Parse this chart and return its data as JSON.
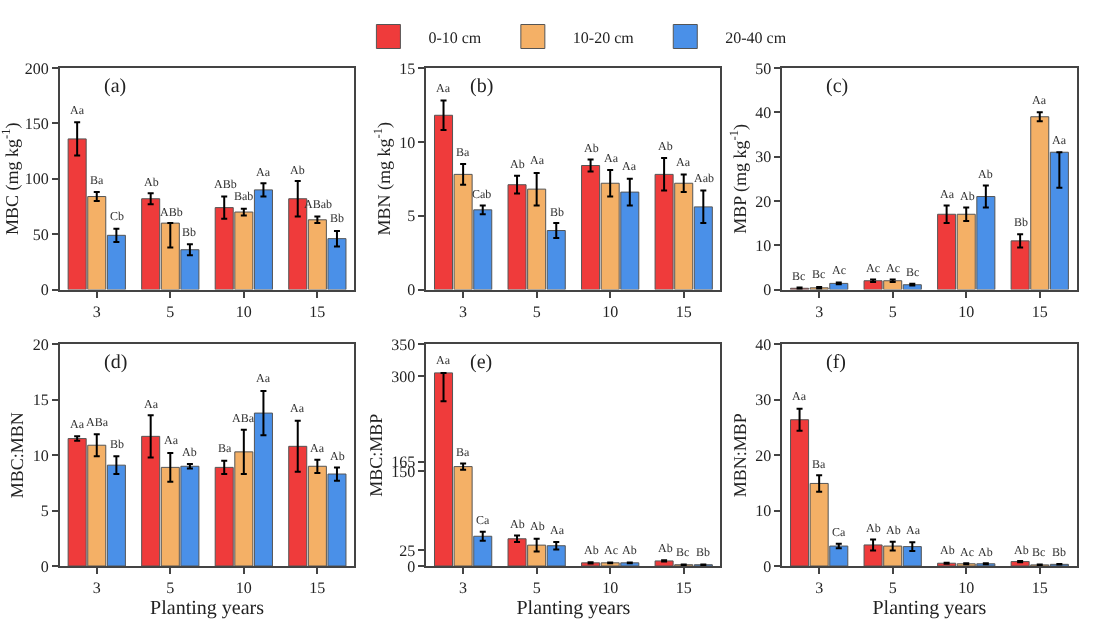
{
  "chart_data": [
    {
      "type": "bar",
      "title": "(a)",
      "ylabel": "MBC (mg kg$^{-1}$)",
      "categories": [
        "3",
        "5",
        "10",
        "15"
      ],
      "ylim": [
        0,
        200
      ],
      "yticks": [
        0,
        50,
        100,
        150,
        200
      ],
      "legend": false,
      "series": [
        {
          "color": "#ef3b3b",
          "values": [
            136,
            82,
            74,
            82
          ],
          "errors": [
            15,
            5,
            10,
            16
          ],
          "value_labels": [
            "Aa",
            "Ab",
            "ABb",
            "Ab"
          ]
        },
        {
          "color": "#f4b066",
          "values": [
            84,
            60,
            70,
            63
          ],
          "errors": [
            4,
            [
              38,
              60
            ],
            3,
            3
          ],
          "value_labels": [
            "Ba",
            "ABb",
            "Bab",
            "ABab"
          ]
        },
        {
          "color": "#4a90e8",
          "values": [
            49,
            36,
            90,
            46
          ],
          "errors": [
            6,
            5,
            6,
            7
          ],
          "value_labels": [
            "Cb",
            "Bb",
            "Aa",
            "Bb"
          ]
        }
      ]
    },
    {
      "type": "bar",
      "title": "(b)",
      "ylabel": "MBN (mg kg$^{-1}$)",
      "categories": [
        "3",
        "5",
        "10",
        "15"
      ],
      "ylim": [
        0,
        15
      ],
      "yticks": [
        0,
        5,
        10,
        15
      ],
      "legend": "top",
      "series": [
        {
          "name": "0-10 cm",
          "color": "#ef3b3b",
          "values": [
            11.8,
            7.1,
            8.4,
            7.8
          ],
          "errors": [
            1,
            0.6,
            0.4,
            1.1
          ],
          "value_labels": [
            "Aa",
            "Ab",
            "Ab",
            "Ab"
          ]
        },
        {
          "name": "10-20 cm",
          "color": "#f4b066",
          "values": [
            7.8,
            6.8,
            7.2,
            7.2
          ],
          "errors": [
            0.7,
            1.1,
            0.9,
            0.6
          ],
          "value_labels": [
            "Ba",
            "Aa",
            "Aa",
            "Aa"
          ]
        },
        {
          "name": "20-40 cm",
          "color": "#4a90e8",
          "values": [
            5.4,
            4.0,
            6.6,
            5.6
          ],
          "errors": [
            0.3,
            0.5,
            0.9,
            1.1
          ],
          "value_labels": [
            "Cab",
            "Bb",
            "Aa",
            "Aab"
          ]
        }
      ]
    },
    {
      "type": "bar",
      "title": "(c)",
      "ylabel": "MBP (mg kg$^{-1}$)",
      "categories": [
        "3",
        "5",
        "10",
        "15"
      ],
      "ylim": [
        0,
        50
      ],
      "yticks": [
        0,
        10,
        20,
        30,
        40,
        50
      ],
      "legend": false,
      "series": [
        {
          "color": "#ef3b3b",
          "values": [
            0.3,
            2,
            17,
            11
          ],
          "errors": [
            0.2,
            0.3,
            2,
            1.5
          ],
          "value_labels": [
            "Bc",
            "Ac",
            "Aa",
            "Bb"
          ]
        },
        {
          "color": "#f4b066",
          "values": [
            0.4,
            2,
            17,
            39
          ],
          "errors": [
            0.2,
            0.3,
            1.5,
            1
          ],
          "value_labels": [
            "Bc",
            "Ac",
            "Ab",
            "Aa"
          ]
        },
        {
          "color": "#4a90e8",
          "values": [
            1.4,
            1.1,
            21,
            31
          ],
          "errors": [
            0.2,
            0.2,
            2.5,
            [
              23,
              31
            ]
          ],
          "value_labels": [
            "Ac",
            "Bc",
            "Ab",
            "Aa"
          ]
        }
      ]
    },
    {
      "type": "bar",
      "title": "(d)",
      "ylabel": "MBC:MBN",
      "xlabel": "Planting years",
      "categories": [
        "3",
        "5",
        "10",
        "15"
      ],
      "ylim": [
        0,
        20
      ],
      "yticks": [
        0,
        5,
        10,
        15,
        20
      ],
      "legend": false,
      "series": [
        {
          "color": "#ef3b3b",
          "values": [
            11.5,
            11.7,
            8.9,
            10.8
          ],
          "errors": [
            0.2,
            1.9,
            0.6,
            2.3
          ],
          "value_labels": [
            "Aa",
            "Aa",
            "Ba",
            "Aa"
          ]
        },
        {
          "color": "#f4b066",
          "values": [
            10.9,
            8.9,
            10.3,
            9.0
          ],
          "errors": [
            1,
            1.3,
            2,
            0.6
          ],
          "value_labels": [
            "ABa",
            "Aa",
            "ABa",
            "Aa"
          ]
        },
        {
          "color": "#4a90e8",
          "values": [
            9.1,
            9.0,
            13.8,
            8.3
          ],
          "errors": [
            0.8,
            0.2,
            2,
            0.6
          ],
          "value_labels": [
            "Bb",
            "Ab",
            "Aa",
            "Ab"
          ]
        }
      ]
    },
    {
      "type": "bar",
      "title": "(e)",
      "ylabel": "MBC:MBP",
      "xlabel": "Planting years",
      "categories": [
        "3",
        "5",
        "10",
        "15"
      ],
      "ylim": [
        0,
        350
      ],
      "yticks": [
        0,
        25,
        150,
        165,
        300,
        350
      ],
      "legend": false,
      "series": [
        {
          "color": "#ef3b3b",
          "values": [
            305,
            43,
            5,
            8
          ],
          "errors": [
            [
              260,
              305
            ],
            5,
            1,
            1
          ],
          "value_labels": [
            "Aa",
            "Ab",
            "Ab",
            "Ab"
          ]
        },
        {
          "color": "#f4b066",
          "values": [
            157,
            33,
            5,
            2
          ],
          "errors": [
            5,
            10,
            0.5,
            0.3
          ],
          "value_labels": [
            "Ba",
            "Ab",
            "Ac",
            "Bc"
          ]
        },
        {
          "color": "#4a90e8",
          "values": [
            47,
            32,
            5,
            2
          ],
          "errors": [
            7,
            6,
            0.5,
            0.3
          ],
          "value_labels": [
            "Ca",
            "Aa",
            "Ab",
            "Bb"
          ]
        }
      ]
    },
    {
      "type": "bar",
      "title": "(f)",
      "ylabel": "MBN:MBP",
      "xlabel": "Planting years",
      "categories": [
        "3",
        "5",
        "10",
        "15"
      ],
      "ylim": [
        0,
        40
      ],
      "yticks": [
        0,
        10,
        20,
        30,
        40
      ],
      "legend": false,
      "series": [
        {
          "color": "#ef3b3b",
          "values": [
            26.4,
            3.8,
            0.5,
            0.8
          ],
          "errors": [
            2,
            1,
            0.1,
            0.1
          ],
          "value_labels": [
            "Aa",
            "Ab",
            "Ab",
            "Ab"
          ]
        },
        {
          "color": "#f4b066",
          "values": [
            14.9,
            3.6,
            0.4,
            0.2
          ],
          "errors": [
            1.5,
            0.8,
            0.1,
            0.05
          ],
          "value_labels": [
            "Ba",
            "Ab",
            "Ac",
            "Bc"
          ]
        },
        {
          "color": "#4a90e8",
          "values": [
            3.6,
            3.5,
            0.4,
            0.3
          ],
          "errors": [
            0.4,
            0.8,
            0.1,
            0.05
          ],
          "value_labels": [
            "Ca",
            "Aa",
            "Ab",
            "Bb"
          ]
        }
      ]
    }
  ]
}
